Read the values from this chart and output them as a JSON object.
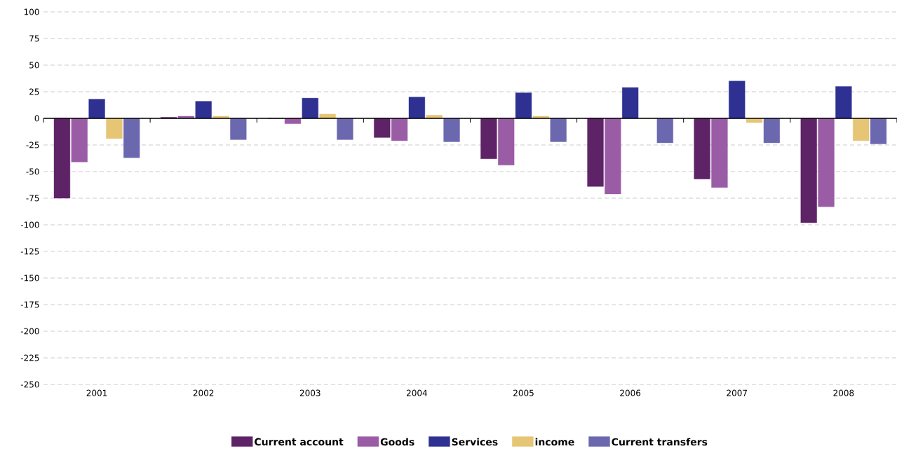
{
  "chart_data": {
    "type": "bar",
    "categories": [
      "2001",
      "2002",
      "2003",
      "2004",
      "2005",
      "2006",
      "2007",
      "2008"
    ],
    "series": [
      {
        "name": "Current account",
        "color": "#5e2367",
        "values": [
          -75,
          1,
          0,
          -18,
          -38,
          -64,
          -57,
          -98
        ]
      },
      {
        "name": "Goods",
        "color": "#9b5ca6",
        "values": [
          -41,
          2,
          -5,
          -21,
          -44,
          -71,
          -65,
          -83
        ]
      },
      {
        "name": "Services",
        "color": "#2e3192",
        "values": [
          18,
          16,
          19,
          20,
          24,
          29,
          35,
          30
        ]
      },
      {
        "name": "income",
        "color": "#e6c575",
        "values": [
          -19,
          2,
          4,
          3,
          2,
          0,
          -4,
          -21
        ]
      },
      {
        "name": "Current transfers",
        "color": "#6c68af",
        "values": [
          -37,
          -20,
          -20,
          -22,
          -22,
          -23,
          -23,
          -24
        ]
      }
    ],
    "ylim": [
      -250,
      100
    ],
    "yticks": [
      -250,
      -225,
      -200,
      -175,
      -150,
      -125,
      -100,
      -75,
      -50,
      -25,
      0,
      25,
      50,
      75,
      100
    ],
    "grid": "y",
    "legend": "bottom"
  }
}
